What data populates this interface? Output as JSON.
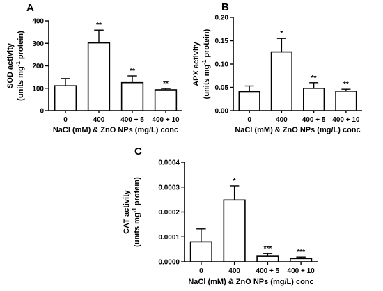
{
  "chart_data": [
    {
      "panel": "A",
      "type": "bar",
      "categories": [
        "0",
        "400",
        "400 + 5",
        "400 + 10"
      ],
      "values": [
        111,
        302,
        125,
        93
      ],
      "errors": [
        32,
        57,
        30,
        6
      ],
      "significance": [
        "",
        "**",
        "**",
        "**"
      ],
      "ylabel_line1": "SOD activity",
      "ylabel_line2_pre": "(units mg",
      "ylabel_sup": "-1",
      "ylabel_line2_post": " protein)",
      "xlabel": "NaCl (mM) & ZnO NPs (mg/L) conc",
      "ylim": [
        0,
        400
      ],
      "yticks": [
        0,
        100,
        200,
        300,
        400
      ],
      "ytick_labels": [
        "0",
        "100",
        "200",
        "300",
        "400"
      ]
    },
    {
      "panel": "B",
      "type": "bar",
      "categories": [
        "0",
        "400",
        "400 + 5",
        "400 + 10"
      ],
      "values": [
        0.041,
        0.126,
        0.048,
        0.042
      ],
      "errors": [
        0.012,
        0.029,
        0.012,
        0.004
      ],
      "significance": [
        "",
        "*",
        "**",
        "**"
      ],
      "ylabel_line1": "APX activity",
      "ylabel_line2_pre": "(units mg",
      "ylabel_sup": "-1",
      "ylabel_line2_post": " protein)",
      "xlabel": "NaCl (mM) & ZnO NPs (mg/L) conc",
      "ylim": [
        0,
        0.2
      ],
      "yticks": [
        0,
        0.05,
        0.1,
        0.15,
        0.2
      ],
      "ytick_labels": [
        "0.00",
        "0.05",
        "0.10",
        "0.15",
        "0.20"
      ]
    },
    {
      "panel": "C",
      "type": "bar",
      "categories": [
        "0",
        "400",
        "400 + 5",
        "400 + 10"
      ],
      "values": [
        8e-05,
        0.000248,
        2.2e-05,
        1.3e-05
      ],
      "errors": [
        5.2e-05,
        5.7e-05,
        1.1e-05,
        6e-06
      ],
      "significance": [
        "",
        "*",
        "***",
        "***"
      ],
      "ylabel_line1": "CAT activity",
      "ylabel_line2_pre": "(units mg",
      "ylabel_sup": "-1",
      "ylabel_line2_post": " protein)",
      "xlabel": "NaCl (mM) & ZnO NPs (mg/L) conc",
      "ylim": [
        0,
        0.0004
      ],
      "yticks": [
        0,
        0.0001,
        0.0002,
        0.0003,
        0.0004
      ],
      "ytick_labels": [
        "0.0000",
        "0.0001",
        "0.0002",
        "0.0003",
        "0.0004"
      ]
    }
  ]
}
